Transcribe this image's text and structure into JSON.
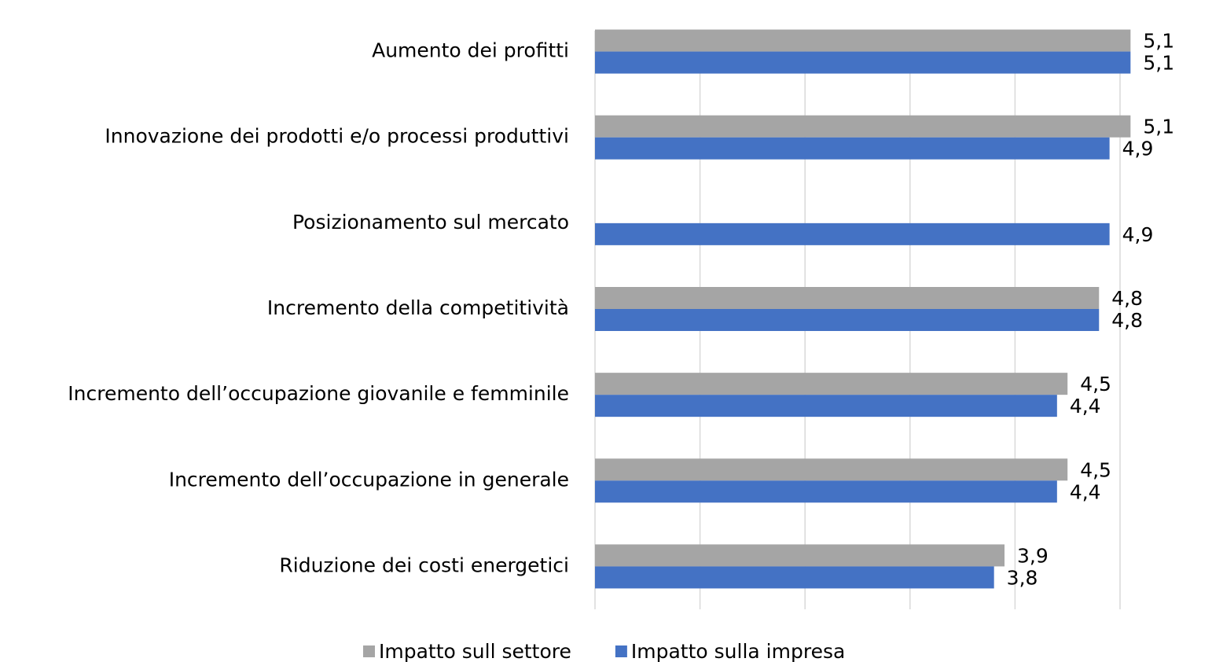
{
  "chart_data": {
    "type": "bar",
    "orientation": "horizontal",
    "categories": [
      "Aumento dei profitti",
      "Innovazione dei prodotti e/o processi produttivi",
      "Posizionamento sul mercato",
      "Incremento della competitività",
      "Incremento dell’occupazione giovanile e femminile",
      "Incremento dell’occupazione in generale",
      "Riduzione dei costi energetici"
    ],
    "series": [
      {
        "name": "Impatto sull settore",
        "color": "#a5a5a5",
        "values": [
          5.1,
          5.1,
          null,
          4.8,
          4.5,
          4.5,
          3.9
        ],
        "value_labels": [
          "5,1",
          "5,1",
          null,
          "4,8",
          "4,5",
          "4,5",
          "3,9"
        ]
      },
      {
        "name": "Impatto sulla impresa",
        "color": "#4472c4",
        "values": [
          5.1,
          4.9,
          4.9,
          4.8,
          4.4,
          4.4,
          3.8
        ],
        "value_labels": [
          "5,1",
          "4,9",
          "4,9",
          "4,8",
          "4,4",
          "4,4",
          "3,8"
        ]
      }
    ],
    "xlim": [
      0,
      5
    ],
    "xticks": [
      0,
      1,
      2,
      3,
      4,
      5
    ],
    "grid": true,
    "legend": "bottom"
  }
}
